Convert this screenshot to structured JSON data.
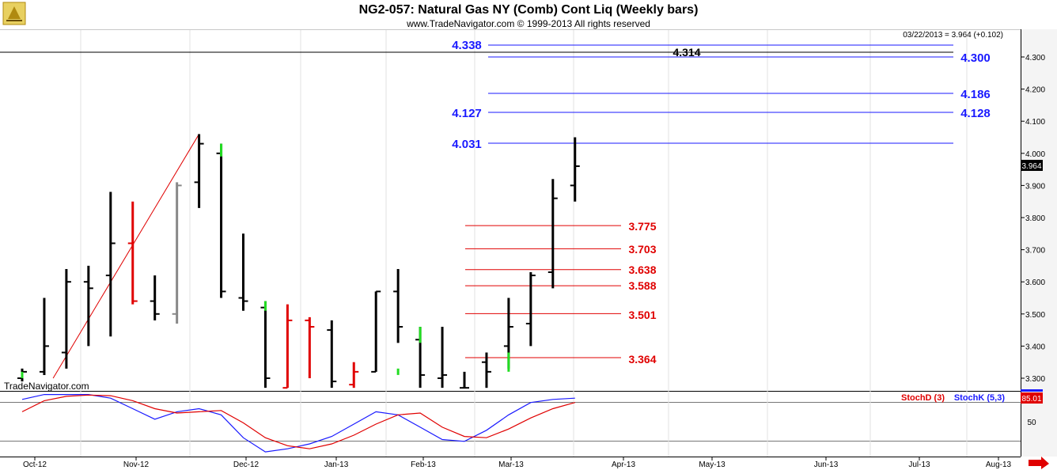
{
  "header": {
    "title": "NG2-057:  Natural Gas NY (Comb) Cont Liq  (Weekly bars)",
    "copyright": "www.TradeNavigator.com © 1999-2013 All rights reserved",
    "quote": "03/22/2013 = 3.964 (+0.102)",
    "watermark": "TradeNavigator.com"
  },
  "colors": {
    "up_bar": "#000000",
    "down_bar": "#e00000",
    "highlight_bar": "#22dd22",
    "neutral_bar": "#888888",
    "blue_level": "#1a1aff",
    "red_level": "#e00000"
  },
  "chart_data": [
    {
      "type": "ohlc",
      "title": "NG2-057:  Natural Gas NY (Comb) Cont Liq  (Weekly bars)",
      "ylim": [
        3.26,
        4.38
      ],
      "y_ticks": [
        "4.300",
        "4.200",
        "4.100",
        "4.000",
        "3.900",
        "3.800",
        "3.700",
        "3.600",
        "3.500",
        "3.400",
        "3.300"
      ],
      "x_ticks": [
        "Oct-12",
        "Nov-12",
        "Dec-12",
        "Jan-13",
        "Feb-13",
        "Mar-13",
        "Apr-13",
        "May-13",
        "Jun-13",
        "Jul-13",
        "Aug-13"
      ],
      "last_price": "3.964",
      "bars": [
        {
          "week": 0,
          "open": 3.3,
          "high": 3.33,
          "low": 3.29,
          "close": 3.32,
          "color": "black"
        },
        {
          "week": 1,
          "open": 3.32,
          "high": 3.55,
          "low": 3.31,
          "close": 3.4,
          "color": "black"
        },
        {
          "week": 2,
          "open": 3.38,
          "high": 3.64,
          "low": 3.33,
          "close": 3.6,
          "color": "black"
        },
        {
          "week": 3,
          "open": 3.6,
          "high": 3.65,
          "low": 3.4,
          "close": 3.58,
          "color": "black"
        },
        {
          "week": 4,
          "open": 3.62,
          "high": 3.88,
          "low": 3.43,
          "close": 3.72,
          "color": "black"
        },
        {
          "week": 5,
          "open": 3.72,
          "high": 3.85,
          "low": 3.53,
          "close": 3.54,
          "color": "red"
        },
        {
          "week": 6,
          "open": 3.54,
          "high": 3.62,
          "low": 3.48,
          "close": 3.5,
          "color": "black"
        },
        {
          "week": 7,
          "open": 3.5,
          "high": 3.91,
          "low": 3.47,
          "close": 3.9,
          "color": "gray"
        },
        {
          "week": 8,
          "open": 3.91,
          "high": 4.06,
          "low": 3.83,
          "close": 4.03,
          "color": "black"
        },
        {
          "week": 9,
          "open": 4.0,
          "high": 4.03,
          "low": 3.55,
          "close": 3.57,
          "color": "black"
        },
        {
          "week": 10,
          "open": 3.55,
          "high": 3.75,
          "low": 3.51,
          "close": 3.54,
          "color": "black"
        },
        {
          "week": 11,
          "open": 3.52,
          "high": 3.54,
          "low": 3.27,
          "close": 3.3,
          "color": "black"
        },
        {
          "week": 12,
          "open": 3.27,
          "high": 3.53,
          "low": 3.27,
          "close": 3.48,
          "color": "red"
        },
        {
          "week": 13,
          "open": 3.48,
          "high": 3.49,
          "low": 3.3,
          "close": 3.46,
          "color": "red"
        },
        {
          "week": 14,
          "open": 3.45,
          "high": 3.48,
          "low": 3.27,
          "close": 3.29,
          "color": "black"
        },
        {
          "week": 15,
          "open": 3.28,
          "high": 3.35,
          "low": 3.27,
          "close": 3.32,
          "color": "red"
        },
        {
          "week": 16,
          "open": 3.32,
          "high": 3.57,
          "low": 3.32,
          "close": 3.57,
          "color": "black"
        },
        {
          "week": 17,
          "open": 3.57,
          "high": 3.64,
          "low": 3.41,
          "close": 3.46,
          "color": "black"
        },
        {
          "week": 18,
          "open": 3.42,
          "high": 3.46,
          "low": 3.27,
          "close": 3.31,
          "color": "black"
        },
        {
          "week": 19,
          "open": 3.3,
          "high": 3.46,
          "low": 3.27,
          "close": 3.31,
          "color": "black"
        },
        {
          "week": 20,
          "open": 3.27,
          "high": 3.32,
          "low": 3.27,
          "close": 3.27,
          "color": "black"
        },
        {
          "week": 21,
          "open": 3.35,
          "high": 3.38,
          "low": 3.27,
          "close": 3.32,
          "color": "black"
        },
        {
          "week": 22,
          "open": 3.4,
          "high": 3.55,
          "low": 3.33,
          "close": 3.46,
          "color": "black"
        },
        {
          "week": 23,
          "open": 3.47,
          "high": 3.63,
          "low": 3.4,
          "close": 3.62,
          "color": "black"
        },
        {
          "week": 24,
          "open": 3.63,
          "high": 3.92,
          "low": 3.58,
          "close": 3.86,
          "color": "black"
        },
        {
          "week": 25,
          "open": 3.9,
          "high": 4.05,
          "low": 3.85,
          "close": 3.96,
          "color": "black"
        }
      ],
      "highlights": [
        {
          "week": 0,
          "from": 3.31,
          "to": 3.32
        },
        {
          "week": 9,
          "from": 4.0,
          "to": 4.03
        },
        {
          "week": 11,
          "from": 3.52,
          "to": 3.54
        },
        {
          "week": 17,
          "from": 3.32,
          "to": 3.33
        },
        {
          "week": 18,
          "from": 3.42,
          "to": 3.46
        },
        {
          "week": 22,
          "from": 3.33,
          "to": 3.38
        }
      ],
      "trend_lines": [
        {
          "from": {
            "week": 1.4,
            "price": 3.3
          },
          "to": {
            "week": 8.0,
            "price": 4.06
          },
          "color": "red"
        }
      ],
      "levels": [
        {
          "label": "4.338",
          "value": 4.338,
          "color": "blue",
          "label_side": "left"
        },
        {
          "label": "4.314",
          "value": 4.314,
          "color": "black",
          "label_side": "left"
        },
        {
          "label": "4.300",
          "value": 4.3,
          "color": "blue",
          "label_side": "right"
        },
        {
          "label": "4.186",
          "value": 4.186,
          "color": "blue",
          "label_side": "right"
        },
        {
          "label": "4.127",
          "value": 4.127,
          "color": "blue",
          "label_side": "left"
        },
        {
          "label": "4.128",
          "value": 4.128,
          "color": "blue",
          "label_side": "right"
        },
        {
          "label": "4.031",
          "value": 4.031,
          "color": "blue",
          "label_side": "left"
        },
        {
          "label": "3.775",
          "value": 3.775,
          "color": "red",
          "label_side": "right"
        },
        {
          "label": "3.703",
          "value": 3.703,
          "color": "red",
          "label_side": "right"
        },
        {
          "label": "3.638",
          "value": 3.638,
          "color": "red",
          "label_side": "right"
        },
        {
          "label": "3.588",
          "value": 3.588,
          "color": "red",
          "label_side": "right"
        },
        {
          "label": "3.501",
          "value": 3.501,
          "color": "red",
          "label_side": "right"
        },
        {
          "label": "3.364",
          "value": 3.364,
          "color": "red",
          "label_side": "right"
        }
      ]
    },
    {
      "type": "line",
      "ylim": [
        0,
        100
      ],
      "y_ticks": [
        "50"
      ],
      "legend": [
        "StochD (3)",
        "StochK (5,3)"
      ],
      "legend_placement": "top-right",
      "last_value": "85.01",
      "series": [
        {
          "name": "StochK (5,3)",
          "color": "blue",
          "values": [
            90,
            98,
            98,
            98,
            92,
            75,
            58,
            70,
            75,
            65,
            28,
            5,
            10,
            18,
            30,
            50,
            70,
            65,
            45,
            25,
            22,
            40,
            65,
            85,
            90,
            92
          ]
        },
        {
          "name": "StochD (3)",
          "color": "red",
          "values": [
            70,
            88,
            95,
            97,
            96,
            88,
            75,
            68,
            70,
            72,
            52,
            28,
            15,
            10,
            18,
            32,
            50,
            65,
            68,
            45,
            30,
            28,
            42,
            60,
            75,
            85
          ]
        }
      ]
    }
  ]
}
